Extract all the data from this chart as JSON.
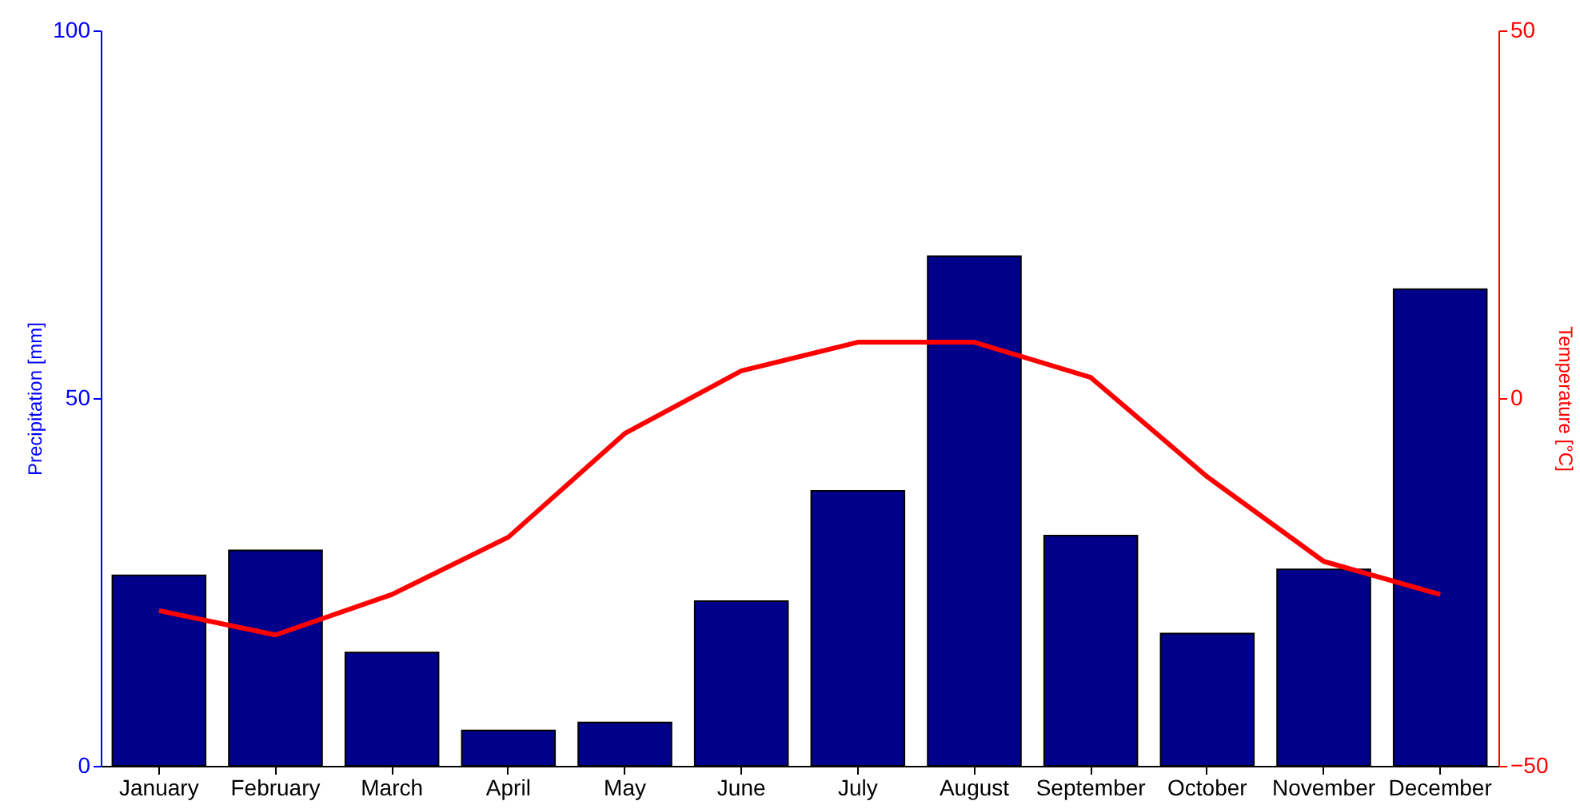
{
  "chart_data": {
    "type": "bar",
    "categories": [
      "January",
      "February",
      "March",
      "April",
      "May",
      "June",
      "July",
      "August",
      "September",
      "October",
      "November",
      "December"
    ],
    "series": [
      {
        "color": "#00008b",
        "values": [
          25.9,
          29.3,
          15.4,
          4.8,
          5.9,
          22.4,
          37.4,
          69.3,
          31.3,
          18.0,
          26.7,
          64.8
        ]
      },
      {
        "type": "line",
        "axis": "y2",
        "color": "#ff0000",
        "values": [
          -28.9,
          -32.2,
          -26.7,
          -18.9,
          -4.8,
          3.7,
          7.6,
          7.6,
          2.8,
          -10.7,
          -22.2,
          -26.7
        ]
      }
    ],
    "ylabel": "Precipitation [mm]",
    "y2label": "Temperature [°C]",
    "ylim": [
      0,
      100
    ],
    "yticks": [
      0,
      50,
      100
    ],
    "y2lim": [
      -50,
      50
    ],
    "y2ticks": [
      -50,
      0,
      50
    ],
    "grid": false,
    "marker": "none",
    "line_style": "solid"
  }
}
